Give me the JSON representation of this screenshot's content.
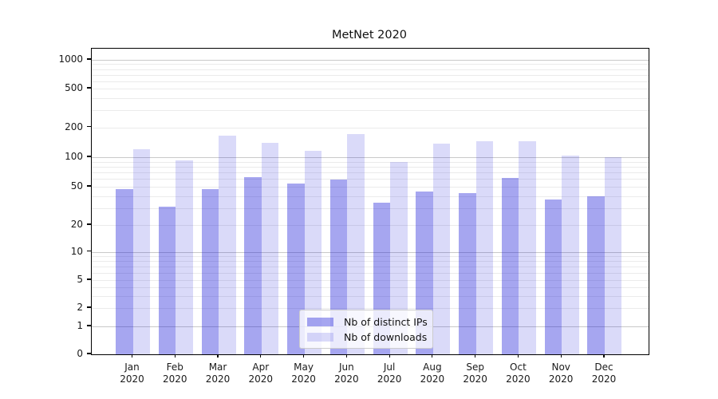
{
  "chart_data": {
    "type": "bar",
    "title": "MetNet 2020",
    "categories": [
      "Jan 2020",
      "Feb 2020",
      "Mar 2020",
      "Apr 2020",
      "May 2020",
      "Jun 2020",
      "Jul 2020",
      "Aug 2020",
      "Sep 2020",
      "Oct 2020",
      "Nov 2020",
      "Dec 2020"
    ],
    "series": [
      {
        "name": "Nb of distinct IPs",
        "values": [
          47,
          31,
          47,
          63,
          54,
          59,
          34,
          45,
          43,
          62,
          37,
          40
        ]
      },
      {
        "name": "Nb of downloads",
        "values": [
          120,
          92,
          165,
          140,
          116,
          172,
          90,
          138,
          145,
          145,
          104,
          100
        ]
      }
    ],
    "xlabel": "",
    "ylabel": "",
    "yscale": "symlog",
    "ytick_labels": [
      "0",
      "1",
      "2",
      "5",
      "10",
      "20",
      "50",
      "100",
      "200",
      "500",
      "1000"
    ],
    "ytick_values": [
      0,
      1,
      2,
      5,
      10,
      20,
      50,
      100,
      200,
      500,
      1000
    ],
    "ylim": [
      0,
      1300
    ],
    "grid": "on",
    "legend_position": "lower center"
  },
  "legend": {
    "items": [
      {
        "label": "Nb of distinct IPs",
        "color_key": "bar_dark"
      },
      {
        "label": "Nb of downloads",
        "color_key": "bar_light"
      }
    ]
  },
  "colors": {
    "bar_dark": "rgba(20,20,215,0.38)",
    "bar_light": "rgba(20,20,215,0.155)",
    "bar_dark_hex": "#a5a5f0",
    "bar_light_hex": "#dbdbf9",
    "grid_major": "#c9c9c9",
    "grid_minor": "#ebebeb",
    "axis": "#000000",
    "text": "#1a1a1a"
  }
}
